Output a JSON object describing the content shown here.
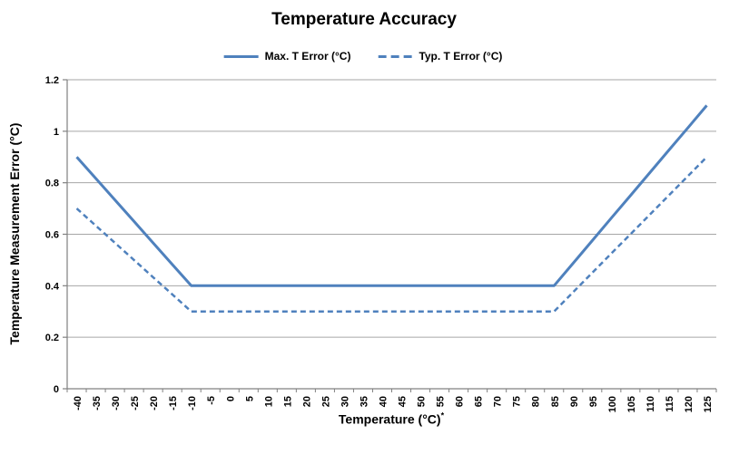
{
  "chart": {
    "title": "Temperature Accuracy",
    "xlabel": "Temperature (°C)",
    "xlabel_superscript": "*",
    "ylabel": "Temperature Measurement Error (°C)"
  },
  "legend": {
    "items": [
      {
        "label": "Max. T Error (°C)",
        "line_style": "solid"
      },
      {
        "label": "Typ. T Error (°C)",
        "line_style": "dashed"
      }
    ]
  },
  "colors": {
    "accent": "#4F81BD",
    "gridline": "#A6A6A6",
    "axis": "#808080",
    "text": "#000000",
    "background": "#FFFFFF"
  },
  "chart_data": {
    "type": "line",
    "title": "Temperature Accuracy",
    "xlabel": "Temperature (°C)*",
    "ylabel": "Temperature Measurement Error (°C)",
    "ylim": [
      0,
      1.2
    ],
    "yticks": [
      0,
      0.2,
      0.4,
      0.6,
      0.8,
      1,
      1.2
    ],
    "ytick_labels": [
      "0",
      "0.2",
      "0.4",
      "0.6",
      "0.8",
      "1",
      "1.2"
    ],
    "grid": "horizontal",
    "legend_position": "top",
    "categories": [
      -40,
      -35,
      -30,
      -25,
      -20,
      -15,
      -10,
      -5,
      0,
      5,
      10,
      15,
      20,
      25,
      30,
      35,
      40,
      45,
      50,
      55,
      60,
      65,
      70,
      75,
      80,
      85,
      90,
      95,
      100,
      105,
      110,
      115,
      120,
      125
    ],
    "series": [
      {
        "name": "Max. T Error (°C)",
        "line_style": "solid",
        "color": "#4F81BD",
        "values": [
          0.9,
          0.8167,
          0.7333,
          0.65,
          0.5667,
          0.4833,
          0.4,
          0.4,
          0.4,
          0.4,
          0.4,
          0.4,
          0.4,
          0.4,
          0.4,
          0.4,
          0.4,
          0.4,
          0.4,
          0.4,
          0.4,
          0.4,
          0.4,
          0.4,
          0.4,
          0.4,
          0.4875,
          0.575,
          0.6625,
          0.75,
          0.8375,
          0.925,
          1.0125,
          1.1
        ]
      },
      {
        "name": "Typ. T Error (°C)",
        "line_style": "dashed",
        "color": "#4F81BD",
        "values": [
          0.7,
          0.6333,
          0.5667,
          0.5,
          0.4333,
          0.3667,
          0.3,
          0.3,
          0.3,
          0.3,
          0.3,
          0.3,
          0.3,
          0.3,
          0.3,
          0.3,
          0.3,
          0.3,
          0.3,
          0.3,
          0.3,
          0.3,
          0.3,
          0.3,
          0.3,
          0.3,
          0.375,
          0.45,
          0.525,
          0.6,
          0.675,
          0.75,
          0.825,
          0.9
        ]
      }
    ]
  }
}
